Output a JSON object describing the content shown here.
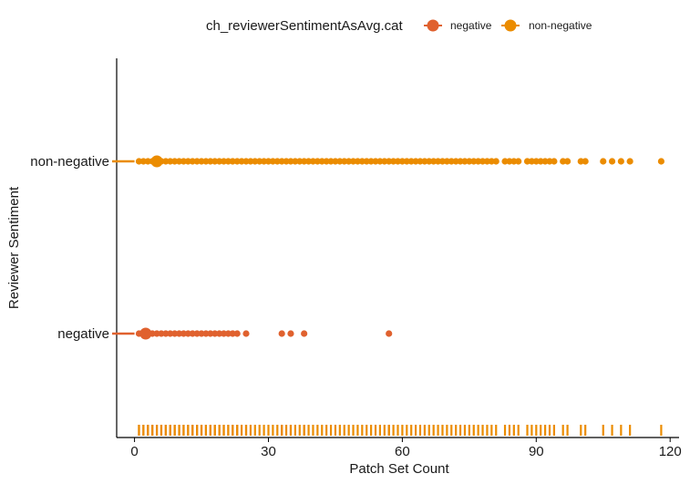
{
  "chart_data": {
    "type": "scatter",
    "xlabel": "Patch Set Count",
    "ylabel": "Reviewer Sentiment",
    "xlim": [
      -4,
      122
    ],
    "x_ticks": [
      0,
      30,
      60,
      90,
      120
    ],
    "categories": [
      "negative",
      "non-negative"
    ],
    "grid": false,
    "rug": "bottom",
    "legend": {
      "title": "ch_reviewerSentimentAsAvg.cat",
      "placement": "top",
      "entries": [
        {
          "label": "negative",
          "color": "#E0612E"
        },
        {
          "label": "non-negative",
          "color": "#EB8C00"
        }
      ]
    },
    "series": [
      {
        "name": "negative",
        "color": "#E0612E",
        "mean": 2.5,
        "whisker": [
          -5,
          0
        ],
        "x": [
          1,
          2,
          3,
          4,
          5,
          6,
          7,
          8,
          9,
          10,
          11,
          12,
          13,
          14,
          15,
          16,
          17,
          18,
          19,
          20,
          21,
          22,
          23,
          25,
          33,
          35,
          38,
          57
        ]
      },
      {
        "name": "non-negative",
        "color": "#EB8C00",
        "mean": 5,
        "whisker": [
          -5,
          0
        ],
        "x": [
          1,
          2,
          3,
          4,
          5,
          6,
          7,
          8,
          9,
          10,
          11,
          12,
          13,
          14,
          15,
          16,
          17,
          18,
          19,
          20,
          21,
          22,
          23,
          24,
          25,
          26,
          27,
          28,
          29,
          30,
          31,
          32,
          33,
          34,
          35,
          36,
          37,
          38,
          39,
          40,
          41,
          42,
          43,
          44,
          45,
          46,
          47,
          48,
          49,
          50,
          51,
          52,
          53,
          54,
          55,
          56,
          57,
          58,
          59,
          60,
          61,
          62,
          63,
          64,
          65,
          66,
          67,
          68,
          69,
          70,
          71,
          72,
          73,
          74,
          75,
          76,
          77,
          78,
          79,
          80,
          81,
          83,
          84,
          85,
          86,
          88,
          89,
          90,
          91,
          92,
          93,
          94,
          96,
          97,
          100,
          101,
          105,
          107,
          109,
          111,
          118
        ]
      }
    ]
  }
}
